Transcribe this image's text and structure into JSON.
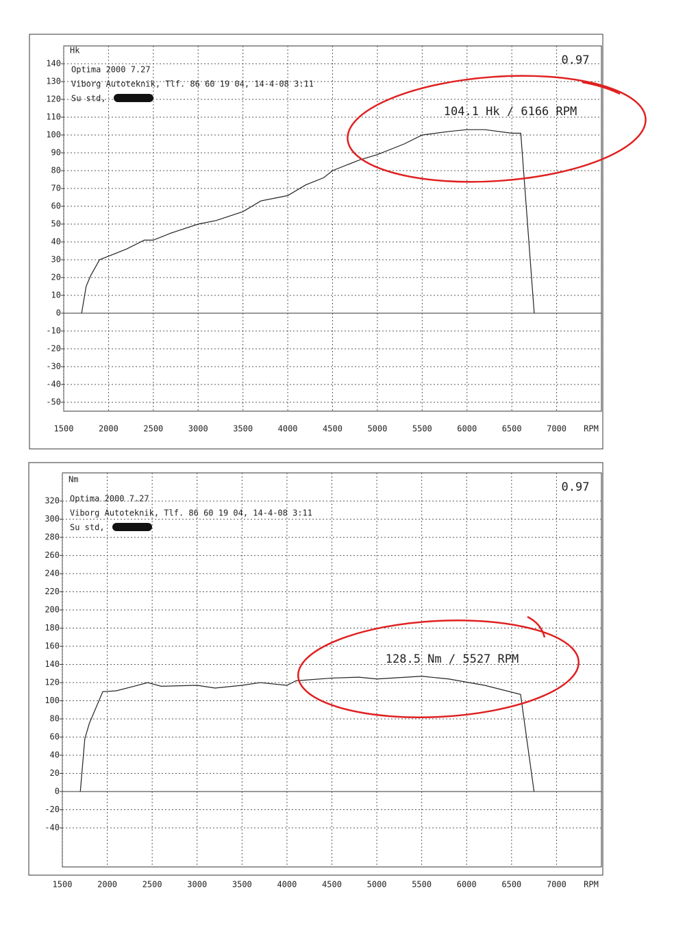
{
  "chart_data": [
    {
      "type": "line",
      "y_label": "Hk",
      "x_label": "RPM",
      "texts": [
        "Optima 2000 7.27",
        "Viborg Autoteknik, Tlf. 86 60 19 04, 14-4-08  3:11",
        "Su std,"
      ],
      "annotations": [
        "0.97",
        "104.1 Hk / 6166 RPM"
      ],
      "x": [
        1700,
        1750,
        1800,
        1900,
        2000,
        2200,
        2400,
        2500,
        2700,
        3000,
        3200,
        3500,
        3700,
        4000,
        4200,
        4400,
        4500,
        4800,
        5000,
        5300,
        5500,
        5800,
        6000,
        6200,
        6500,
        6600,
        6750
      ],
      "values": [
        0,
        15,
        21,
        30,
        32,
        36,
        41,
        41,
        45,
        50,
        52,
        57,
        63,
        66,
        72,
        76,
        80,
        86,
        89,
        95,
        100,
        102,
        103,
        103,
        101,
        101,
        0
      ],
      "color": "#222222",
      "xlim": [
        1500,
        7500
      ],
      "xticks": [
        1500,
        2000,
        2500,
        3000,
        3500,
        4000,
        4500,
        5000,
        5500,
        6000,
        6500,
        7000
      ],
      "ylim": [
        -55,
        150
      ],
      "yticks": [
        -50,
        -40,
        -30,
        -20,
        -10,
        0,
        10,
        20,
        30,
        40,
        50,
        60,
        70,
        80,
        90,
        100,
        110,
        120,
        130,
        140
      ],
      "grid": true
    },
    {
      "type": "line",
      "y_label": "Nm",
      "x_label": "RPM",
      "texts": [
        "Optima 2000 7.27",
        "Viborg Autoteknik, Tlf. 86 60 19 04, 14-4-08  3:11",
        "Su std,"
      ],
      "annotations": [
        "0.97",
        "128.5 Nm / 5527 RPM"
      ],
      "x": [
        1700,
        1750,
        1800,
        1950,
        2100,
        2300,
        2450,
        2600,
        3000,
        3200,
        3500,
        3700,
        4000,
        4100,
        4500,
        4800,
        5000,
        5500,
        5800,
        6200,
        6600,
        6750
      ],
      "values": [
        0,
        58,
        75,
        110,
        111,
        116,
        120,
        116,
        117,
        114,
        117,
        120,
        117,
        122,
        125,
        126,
        124,
        127,
        124,
        117,
        107,
        0
      ],
      "color": "#222222",
      "xlim": [
        1500,
        7500
      ],
      "xticks": [
        1500,
        2000,
        2500,
        3000,
        3500,
        4000,
        4500,
        5000,
        5500,
        6000,
        6500,
        7000
      ],
      "ylim": [
        -83,
        351
      ],
      "yticks": [
        -40,
        -20,
        0,
        20,
        40,
        60,
        80,
        100,
        120,
        140,
        160,
        180,
        200,
        220,
        240,
        260,
        280,
        300,
        320
      ],
      "grid": true
    }
  ]
}
